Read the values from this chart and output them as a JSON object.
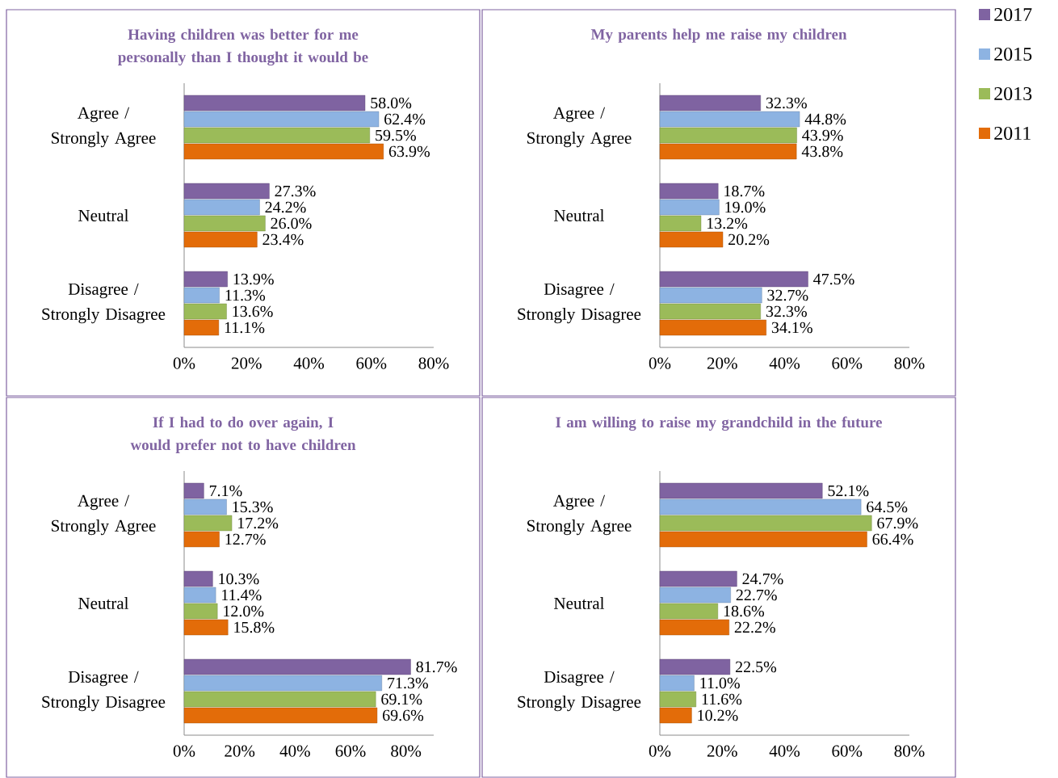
{
  "chart_data": [
    {
      "type": "bar",
      "orientation": "horizontal",
      "title": "Having children was better for me personally than I thought it would be",
      "categories": [
        "Agree / Strongly Agree",
        "Neutral",
        "Disagree / Strongly Disagree"
      ],
      "xlim": [
        0,
        80
      ],
      "xticks": [
        {
          "value": 0,
          "label": "0%"
        },
        {
          "value": 20,
          "label": "20%"
        },
        {
          "value": 40,
          "label": "40%"
        },
        {
          "value": 60,
          "label": "60%"
        },
        {
          "value": 80,
          "label": "80%"
        }
      ],
      "series": [
        {
          "color": "#7f63a1",
          "values": [
            58.0,
            27.3,
            13.9
          ],
          "value_labels": [
            "58.0%",
            "27.3%",
            "13.9%"
          ]
        },
        {
          "color": "#8db3e2",
          "values": [
            62.4,
            24.2,
            11.3
          ],
          "value_labels": [
            "62.4%",
            "24.2%",
            "11.3%"
          ]
        },
        {
          "color": "#9bbb59",
          "values": [
            59.5,
            26.0,
            13.6
          ],
          "value_labels": [
            "59.5%",
            "26.0%",
            "13.6%"
          ]
        },
        {
          "color": "#e36c09",
          "values": [
            63.9,
            23.4,
            11.1
          ],
          "value_labels": [
            "63.9%",
            "23.4%",
            "11.1%"
          ]
        }
      ]
    },
    {
      "type": "bar",
      "orientation": "horizontal",
      "title": "My parents help me raise my children",
      "legend": "right",
      "categories": [
        "Agree / Strongly Agree",
        "Neutral",
        "Disagree / Strongly Disagree"
      ],
      "xlim": [
        0,
        80
      ],
      "xticks": [
        {
          "value": 0,
          "label": "0%"
        },
        {
          "value": 20,
          "label": "20%"
        },
        {
          "value": 40,
          "label": "40%"
        },
        {
          "value": 60,
          "label": "60%"
        },
        {
          "value": 80,
          "label": "80%"
        }
      ],
      "series": [
        {
          "name": "2017",
          "color": "#7f63a1",
          "values": [
            32.3,
            18.7,
            47.5
          ],
          "value_labels": [
            "32.3%",
            "18.7%",
            "47.5%"
          ]
        },
        {
          "name": "2015",
          "color": "#8db3e2",
          "values": [
            44.8,
            19.0,
            32.7
          ],
          "value_labels": [
            "44.8%",
            "19.0%",
            "32.7%"
          ]
        },
        {
          "name": "2013",
          "color": "#9bbb59",
          "values": [
            43.9,
            13.2,
            32.3
          ],
          "value_labels": [
            "43.9%",
            "13.2%",
            "32.3%"
          ]
        },
        {
          "name": "2011",
          "color": "#e36c09",
          "values": [
            43.8,
            20.2,
            34.1
          ],
          "value_labels": [
            "43.8%",
            "20.2%",
            "34.1%"
          ]
        }
      ]
    },
    {
      "type": "bar",
      "orientation": "horizontal",
      "title": "If I had to do over again, I would prefer not to have children",
      "categories": [
        "Agree / Strongly Agree",
        "Neutral",
        "Disagree / Strongly Disagree"
      ],
      "xlim": [
        0,
        90
      ],
      "xticks": [
        {
          "value": 0,
          "label": "0%"
        },
        {
          "value": 20,
          "label": "20%"
        },
        {
          "value": 40,
          "label": "40%"
        },
        {
          "value": 60,
          "label": "60%"
        },
        {
          "value": 80,
          "label": "80%"
        }
      ],
      "series": [
        {
          "color": "#7f63a1",
          "values": [
            7.1,
            10.3,
            81.7
          ],
          "value_labels": [
            "7.1%",
            "10.3%",
            "81.7%"
          ]
        },
        {
          "color": "#8db3e2",
          "values": [
            15.3,
            11.4,
            71.3
          ],
          "value_labels": [
            "15.3%",
            "11.4%",
            "71.3%"
          ]
        },
        {
          "color": "#9bbb59",
          "values": [
            17.2,
            12.0,
            69.1
          ],
          "value_labels": [
            "17.2%",
            "12.0%",
            "69.1%"
          ]
        },
        {
          "color": "#e36c09",
          "values": [
            12.7,
            15.8,
            69.6
          ],
          "value_labels": [
            "12.7%",
            "15.8%",
            "69.6%"
          ]
        }
      ]
    },
    {
      "type": "bar",
      "orientation": "horizontal",
      "title": "I am willing to raise my grandchild in the future",
      "categories": [
        "Agree / Strongly Agree",
        "Neutral",
        "Disagree / Strongly Disagree"
      ],
      "xlim": [
        0,
        80
      ],
      "xticks": [
        {
          "value": 0,
          "label": "0%"
        },
        {
          "value": 20,
          "label": "20%"
        },
        {
          "value": 40,
          "label": "40%"
        },
        {
          "value": 60,
          "label": "60%"
        },
        {
          "value": 80,
          "label": "80%"
        }
      ],
      "series": [
        {
          "color": "#7f63a1",
          "values": [
            52.1,
            24.7,
            22.5
          ],
          "value_labels": [
            "52.1%",
            "24.7%",
            "22.5%"
          ]
        },
        {
          "color": "#8db3e2",
          "values": [
            64.5,
            22.7,
            11.0
          ],
          "value_labels": [
            "64.5%",
            "22.7%",
            "11.0%"
          ]
        },
        {
          "color": "#9bbb59",
          "values": [
            67.9,
            18.6,
            11.6
          ],
          "value_labels": [
            "67.9%",
            "18.6%",
            "11.6%"
          ]
        },
        {
          "color": "#e36c09",
          "values": [
            66.4,
            22.2,
            10.2
          ],
          "value_labels": [
            "66.4%",
            "22.2%",
            "10.2%"
          ]
        }
      ]
    }
  ]
}
